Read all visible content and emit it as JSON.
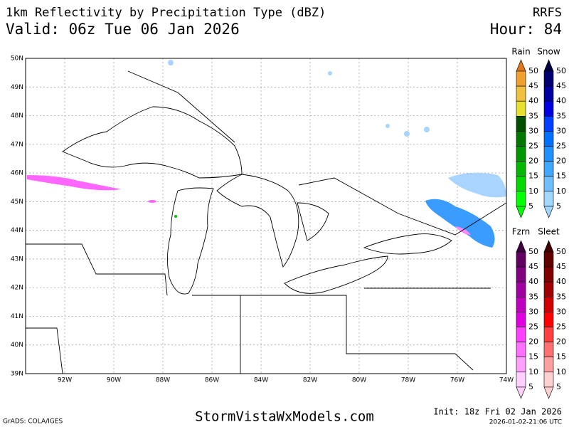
{
  "header": {
    "title": "1km Reflectivity by Precipitation Type (dBZ)",
    "model": "RRFS",
    "valid": "Valid: 06z Tue 06 Jan 2026",
    "hour": "Hour: 84"
  },
  "map": {
    "lat_labels": [
      "50N",
      "49N",
      "48N",
      "47N",
      "46N",
      "45N",
      "44N",
      "43N",
      "42N",
      "41N",
      "40N",
      "39N"
    ],
    "lon_labels": [
      "92W",
      "90W",
      "88W",
      "86W",
      "84W",
      "82W",
      "80W",
      "78W",
      "76W",
      "74W"
    ]
  },
  "legend": {
    "rain": {
      "name": "Rain",
      "levels": [
        50,
        45,
        40,
        35,
        30,
        25,
        20,
        15,
        10,
        5
      ]
    },
    "snow": {
      "name": "Snow",
      "levels": [
        50,
        45,
        40,
        35,
        30,
        25,
        20,
        15,
        10,
        5
      ]
    },
    "fzrn": {
      "name": "Fzrn",
      "levels": [
        50,
        45,
        40,
        35,
        30,
        25,
        20,
        15,
        10,
        5
      ]
    },
    "sleet": {
      "name": "Sleet",
      "levels": [
        50,
        45,
        40,
        35,
        30,
        25,
        20,
        15,
        10,
        5
      ]
    }
  },
  "footer": {
    "credit": "GrADS: COLA/IGES",
    "site": "StormVistaWxModels.com",
    "init": "Init: 18z Fri 02 Jan 2026",
    "timestamp": "2026-01-02-21:06 UTC"
  }
}
